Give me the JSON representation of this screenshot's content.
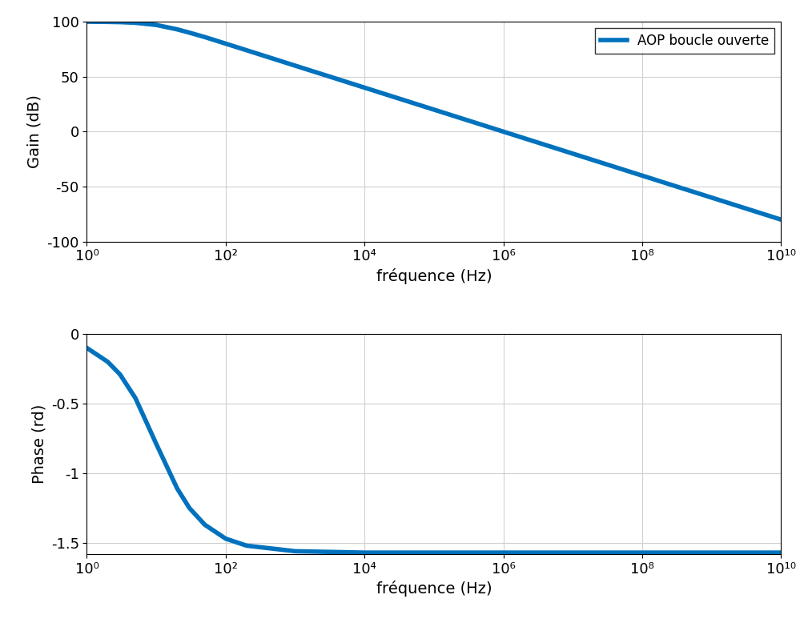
{
  "chart_data": [
    {
      "type": "line",
      "x": [
        1,
        2,
        3,
        5,
        10,
        20,
        30,
        50,
        100,
        200,
        1000,
        10000,
        100000,
        1000000,
        10000000,
        100000000,
        1000000000,
        10000000000
      ],
      "series": [
        {
          "name": "AOP boucle ouverte",
          "color": "#0072bd",
          "values": [
            100,
            99.8,
            99.6,
            99,
            97,
            93,
            90,
            86,
            80,
            74,
            60,
            40,
            20,
            0,
            -20,
            -40,
            -60,
            -80
          ]
        }
      ],
      "xlabel": "fréquence (Hz)",
      "ylabel": "Gain (dB)",
      "xlim": [
        1,
        10000000000
      ],
      "xticks": [
        {
          "value": 1,
          "label": "10⁰"
        },
        {
          "value": 100,
          "label": "10²"
        },
        {
          "value": 10000,
          "label": "10⁴"
        },
        {
          "value": 1000000,
          "label": "10⁶"
        },
        {
          "value": 100000000,
          "label": "10⁸"
        },
        {
          "value": 10000000000,
          "label": "10¹⁰"
        }
      ],
      "ylim": [
        -100,
        100
      ],
      "yticks": [
        -100,
        -50,
        0,
        50,
        100
      ],
      "log": "x",
      "grid": true,
      "legend": "upper right"
    },
    {
      "type": "line",
      "x": [
        1,
        2,
        3,
        5,
        10,
        20,
        30,
        50,
        100,
        200,
        1000,
        10000,
        100000,
        1000000,
        10000000,
        100000000,
        1000000000,
        10000000000
      ],
      "series": [
        {
          "color": "#0072bd",
          "values": [
            -0.1,
            -0.2,
            -0.29,
            -0.46,
            -0.79,
            -1.11,
            -1.25,
            -1.37,
            -1.47,
            -1.52,
            -1.56,
            -1.57,
            -1.57,
            -1.57,
            -1.57,
            -1.57,
            -1.57,
            -1.57
          ]
        }
      ],
      "xlabel": "fréquence (Hz)",
      "ylabel": "Phase (rd)",
      "xlim": [
        1,
        10000000000
      ],
      "xticks": [
        {
          "value": 1,
          "label": "10⁰"
        },
        {
          "value": 100,
          "label": "10²"
        },
        {
          "value": 10000,
          "label": "10⁴"
        },
        {
          "value": 1000000,
          "label": "10⁶"
        },
        {
          "value": 100000000,
          "label": "10⁸"
        },
        {
          "value": 10000000000,
          "label": "10¹⁰"
        }
      ],
      "ylim": [
        -1.58,
        0
      ],
      "yticks": [
        -1.5,
        -1,
        -0.5,
        0
      ],
      "log": "x",
      "grid": true
    }
  ]
}
